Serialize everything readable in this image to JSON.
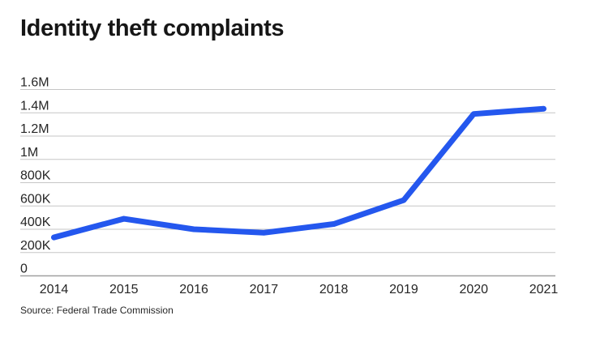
{
  "chart_data": {
    "type": "line",
    "title": "Identity theft complaints",
    "source": "Source: Federal Trade Commission",
    "xlabel": "",
    "ylabel": "",
    "categories": [
      "2014",
      "2015",
      "2016",
      "2017",
      "2018",
      "2019",
      "2020",
      "2021"
    ],
    "series": [
      {
        "name": "Identity theft complaints",
        "values": [
          330000,
          490000,
          400000,
          370000,
          445000,
          650000,
          1390000,
          1435000
        ]
      }
    ],
    "ylim": [
      0,
      1600000
    ],
    "y_ticks": [
      {
        "label": "1.6M",
        "value": 1600000
      },
      {
        "label": "1.4M",
        "value": 1400000
      },
      {
        "label": "1.2M",
        "value": 1200000
      },
      {
        "label": "1M",
        "value": 1000000
      },
      {
        "label": "800K",
        "value": 800000
      },
      {
        "label": "600K",
        "value": 600000
      },
      {
        "label": "400K",
        "value": 400000
      },
      {
        "label": "200K",
        "value": 200000
      },
      {
        "label": "0",
        "value": 0
      }
    ],
    "grid": "horizontal",
    "legend": "none",
    "colors": {
      "line": "#2457ee",
      "gridline": "#c6c6c6",
      "axis_line": "#a0a0a0",
      "tick_text": "#262626",
      "background": "#ffffff"
    }
  }
}
